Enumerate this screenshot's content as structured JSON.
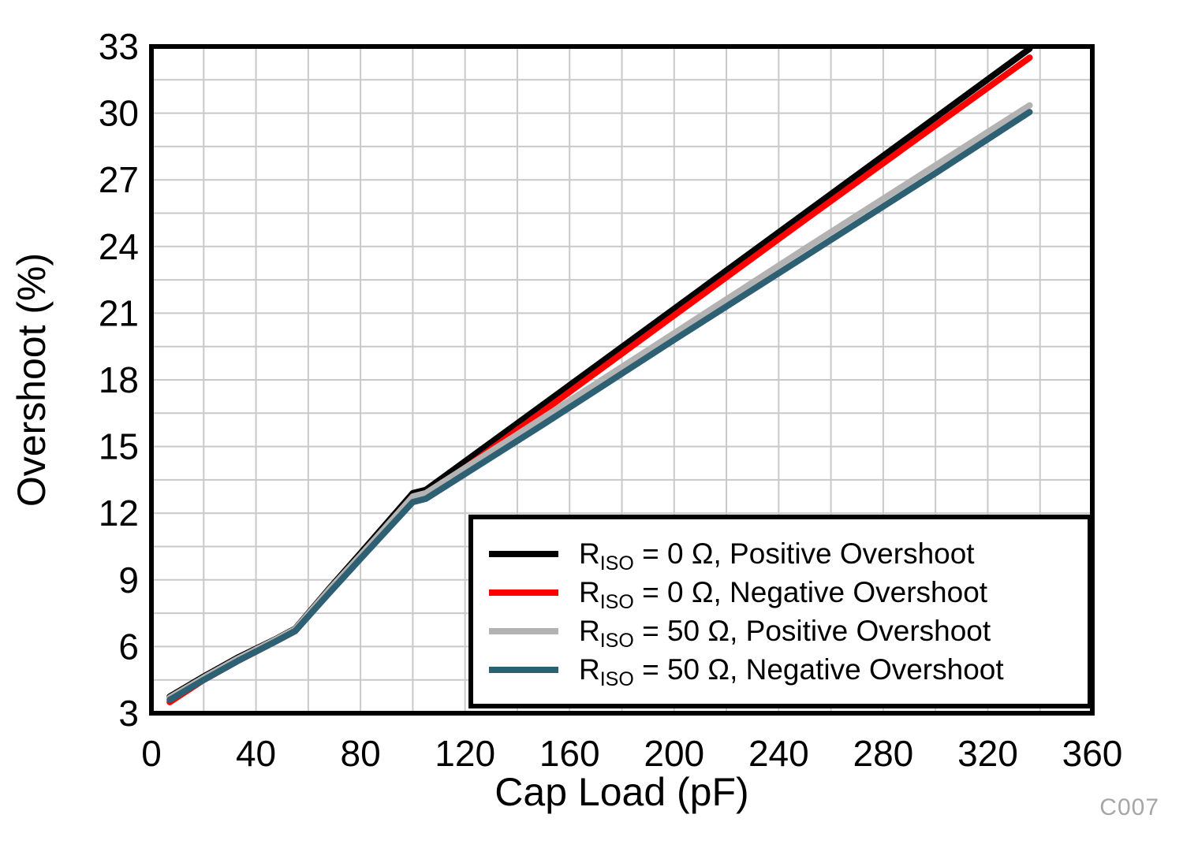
{
  "watermark": "C007",
  "chart_data": {
    "type": "line",
    "title": "",
    "xlabel": "Cap Load (pF)",
    "ylabel": "Overshoot (%)",
    "xlim": [
      0,
      360
    ],
    "ylim": [
      3,
      33
    ],
    "x_ticks": [
      0,
      40,
      80,
      120,
      160,
      200,
      240,
      280,
      320,
      360
    ],
    "y_ticks": [
      3,
      6,
      9,
      12,
      15,
      18,
      21,
      24,
      27,
      30,
      33
    ],
    "x_minor_step": 20,
    "y_minor_step": 1.5,
    "grid": true,
    "grid_color": "#c9c9c9",
    "frame_color": "#000000",
    "legend_position": "lower right inside",
    "series": [
      {
        "name": "RISO = 0 Ohm, Positive Overshoot",
        "color": "#000000",
        "legend": {
          "prefix": "R",
          "sub": "ISO",
          "rest": " = 0 Ω, Positive Overshoot"
        },
        "x": [
          7,
          20,
          33,
          47,
          55,
          68,
          80,
          100,
          105,
          150,
          200,
          250,
          300,
          336
        ],
        "y": [
          3.75,
          4.65,
          5.5,
          6.3,
          6.8,
          8.6,
          10.2,
          12.9,
          13.05,
          16.9,
          21.2,
          25.5,
          29.8,
          32.9
        ]
      },
      {
        "name": "RISO = 0 Ohm, Negative Overshoot",
        "color": "#ff0000",
        "legend": {
          "prefix": "R",
          "sub": "ISO",
          "rest": " = 0 Ω, Negative Overshoot"
        },
        "x": [
          7,
          20,
          33,
          47,
          55,
          68,
          80,
          100,
          105,
          150,
          200,
          250,
          300,
          336
        ],
        "y": [
          3.5,
          4.5,
          5.35,
          6.2,
          6.7,
          8.45,
          10.0,
          12.6,
          12.75,
          16.6,
          20.9,
          25.2,
          29.45,
          32.5
        ]
      },
      {
        "name": "RISO = 50 Ohm, Positive Overshoot",
        "color": "#b3b3b3",
        "legend": {
          "prefix": "R",
          "sub": "ISO",
          "rest": " = 50 Ω, Positive Overshoot"
        },
        "x": [
          7,
          20,
          33,
          47,
          55,
          68,
          80,
          100,
          105,
          150,
          200,
          250,
          300,
          336
        ],
        "y": [
          3.7,
          4.6,
          5.45,
          6.28,
          6.78,
          8.55,
          10.1,
          12.75,
          12.9,
          16.3,
          20.1,
          23.9,
          27.65,
          30.35
        ]
      },
      {
        "name": "RISO = 50 Ohm, Negative Overshoot",
        "color": "#2e6074",
        "legend": {
          "prefix": "R",
          "sub": "ISO",
          "rest": " = 50 Ω, Negative Overshoot"
        },
        "x": [
          7,
          20,
          33,
          47,
          55,
          68,
          80,
          100,
          105,
          150,
          200,
          250,
          300,
          336
        ],
        "y": [
          3.6,
          4.5,
          5.35,
          6.2,
          6.7,
          8.4,
          9.95,
          12.5,
          12.65,
          16.0,
          19.8,
          23.55,
          27.3,
          30.05
        ]
      }
    ]
  }
}
